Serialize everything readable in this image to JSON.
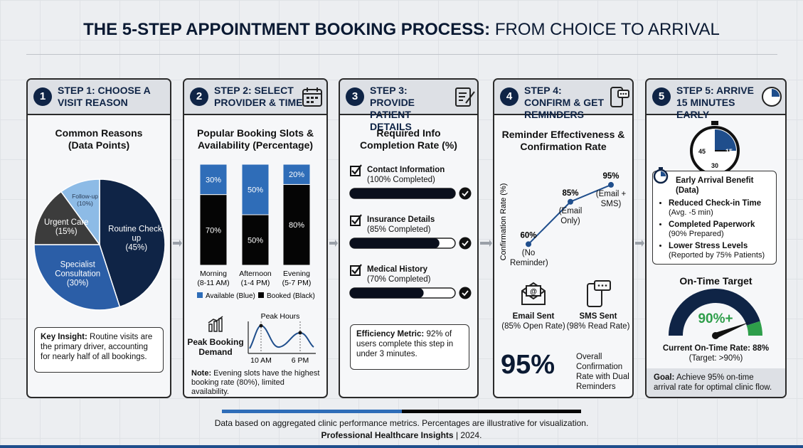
{
  "title": {
    "bold": "THE 5-STEP APPOINTMENT BOOKING PROCESS:",
    "light": "FROM CHOICE TO ARRIVAL"
  },
  "steps": [
    {
      "number": 1,
      "heading": "STEP 1: CHOOSE A VISIT REASON",
      "chart": {
        "type": "pie",
        "title": "Common Reasons (Data Points)",
        "categories": [
          "Routine Check-up",
          "Specialist Consultation",
          "Urgent Care",
          "Follow-up"
        ],
        "values": [
          45,
          30,
          15,
          10
        ],
        "value_labels": [
          "(45%)",
          "(30%)",
          "(15%)",
          "(10%)"
        ],
        "colors": [
          "#0f2446",
          "#2b5ea7",
          "#3c3c3c",
          "#8dbbe6"
        ]
      },
      "insight": {
        "label": "Key Insight:",
        "text": "Routine visits are the primary driver, accounting for nearly half of all bookings."
      }
    },
    {
      "number": 2,
      "heading": "STEP 2: SELECT PROVIDER & TIME",
      "chart": {
        "type": "bar",
        "stacked": true,
        "title": "Popular Booking Slots & Availability (Percentage)",
        "categories": [
          "Morning",
          "Afternoon",
          "Evening"
        ],
        "category_hours": [
          "(8-11 AM)",
          "(1-4 PM)",
          "(5-7 PM)"
        ],
        "ylim": [
          0,
          100
        ],
        "series": [
          {
            "name": "Available (Blue)",
            "color": "#2f6db8",
            "values": [
              30,
              50,
              20
            ],
            "value_labels": [
              "30%",
              "50%",
              "20%"
            ]
          },
          {
            "name": "Booked (Black)",
            "color": "#050505",
            "values": [
              70,
              50,
              80
            ],
            "value_labels": [
              "70%",
              "50%",
              "80%"
            ]
          }
        ]
      },
      "demand": {
        "title": "Peak Booking Demand",
        "peak": "Peak Hours",
        "x": [
          "10 AM",
          "6 PM"
        ]
      },
      "note": {
        "label": "Note:",
        "text": "Evening slots have the highest booking rate (80%), limited availability."
      }
    },
    {
      "number": 3,
      "heading": "STEP 3: PROVIDE PATIENT DETAILS",
      "chart": {
        "type": "progress",
        "title": "Required Info Completion Rate (%)",
        "xlim": [
          0,
          100
        ],
        "items": [
          {
            "label": "Contact Information",
            "detail": "(100% Completed)",
            "value": 100
          },
          {
            "label": "Insurance Details",
            "detail": "(85% Completed)",
            "value": 85
          },
          {
            "label": "Medical History",
            "detail": "(70% Completed)",
            "value": 70
          }
        ]
      },
      "metric": {
        "label": "Efficiency Metric:",
        "text": "92% of users complete this step in under 3 minutes."
      }
    },
    {
      "number": 4,
      "heading": "STEP 4: CONFIRM & GET REMINDERS",
      "chart": {
        "type": "line",
        "title": "Reminder Effectiveness & Confirmation Rate",
        "y_label": "Confirmation Rate (%)",
        "categories": [
          "(No Reminder)",
          "(Email Only)",
          "(Email + SMS)"
        ],
        "values": [
          60,
          85,
          95
        ],
        "value_labels": [
          "60%",
          "85%",
          "95%"
        ],
        "ylim": [
          40,
          100
        ],
        "color": "#1f4e8c"
      },
      "channels": [
        {
          "name": "Email Sent",
          "detail": "(85% Open Rate)"
        },
        {
          "name": "SMS Sent",
          "detail": "(98% Read Rate)"
        }
      ],
      "overall": {
        "value": "95%",
        "text": "Overall Confirmation Rate with Dual Reminders"
      }
    },
    {
      "number": 5,
      "heading": "STEP 5: ARRIVE 15 MINUTES EARLY",
      "clock": [
        45,
        15,
        30
      ],
      "benefits": {
        "title": "Early Arrival Benefit (Data)",
        "items": [
          {
            "label": "Reduced Check-in Time",
            "detail": "(Avg. -5 min)"
          },
          {
            "label": "Completed Paperwork",
            "detail": "(90% Prepared)"
          },
          {
            "label": "Lower Stress Levels",
            "detail": "(Reported by 75% Patients)"
          }
        ]
      },
      "gauge": {
        "type": "gauge",
        "title": "On-Time Target",
        "value": 88,
        "target": 90,
        "lim": [
          0,
          100
        ],
        "target_label": "90%+",
        "current": "Current On-Time Rate: 88%",
        "target_note": "(Target: >90%)"
      },
      "goal": {
        "label": "Goal:",
        "text": "Achieve 95% on-time arrival rate for optimal clinic flow."
      }
    }
  ],
  "footer": {
    "text": "Data based on aggregated clinic performance metrics. Percentages are illustrative for visualization.",
    "source": "Professional Healthcare Insights",
    "year": "| 2024."
  }
}
